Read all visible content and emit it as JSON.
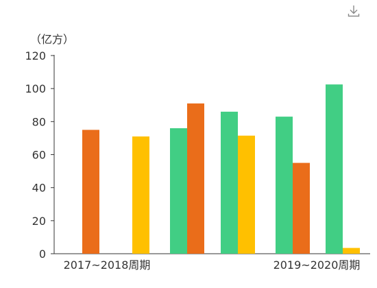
{
  "toolbar": {
    "download_icon": "download-icon"
  },
  "chart_data": {
    "type": "bar",
    "unit_label": "（亿方）",
    "ylim": [
      0,
      120
    ],
    "yticks": [
      0,
      20,
      40,
      60,
      80,
      100,
      120
    ],
    "grid": false,
    "x_labels": [
      {
        "text": "2017~2018周期",
        "position": "left"
      },
      {
        "text": "2019~2020周期",
        "position": "right"
      }
    ],
    "groups": [
      {
        "bars": [
          {
            "series": 0,
            "value": null
          },
          {
            "series": 1,
            "value": 75
          },
          {
            "series": 2,
            "value": null
          }
        ]
      },
      {
        "bars": [
          {
            "series": 0,
            "value": null
          },
          {
            "series": 2,
            "value": 71
          }
        ]
      },
      {
        "bars": [
          {
            "series": 0,
            "value": 76
          },
          {
            "series": 1,
            "value": 91
          }
        ]
      },
      {
        "bars": [
          {
            "series": 0,
            "value": 86
          },
          {
            "series": 2,
            "value": 71.5
          }
        ]
      },
      {
        "bars": [
          {
            "series": 0,
            "value": 83
          },
          {
            "series": 1,
            "value": 55
          }
        ]
      },
      {
        "bars": [
          {
            "series": 0,
            "value": 102.5
          },
          {
            "series": 2,
            "value": 3.5
          }
        ]
      }
    ],
    "series_colors": [
      "#41ce84",
      "#ea6d1a",
      "#ffc000"
    ]
  }
}
